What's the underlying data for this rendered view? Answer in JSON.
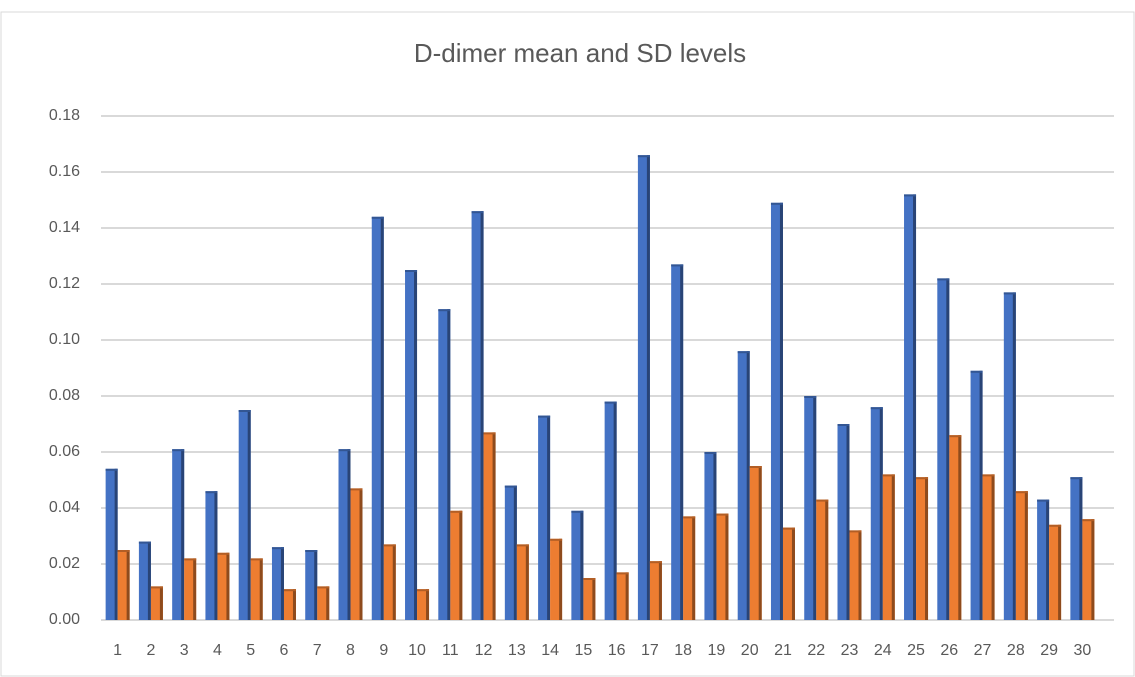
{
  "chart_data": {
    "type": "bar",
    "title": "D-dimer mean and SD levels",
    "categories": [
      "1",
      "2",
      "3",
      "4",
      "5",
      "6",
      "7",
      "8",
      "9",
      "10",
      "11",
      "12",
      "13",
      "14",
      "15",
      "16",
      "17",
      "18",
      "19",
      "20",
      "21",
      "22",
      "23",
      "24",
      "25",
      "26",
      "27",
      "28",
      "29",
      "30"
    ],
    "series": [
      {
        "color": "#4472c4",
        "values": [
          0.054,
          0.028,
          0.061,
          0.046,
          0.075,
          0.026,
          0.025,
          0.061,
          0.144,
          0.125,
          0.111,
          0.146,
          0.048,
          0.073,
          0.039,
          0.078,
          0.166,
          0.127,
          0.06,
          0.096,
          0.149,
          0.08,
          0.07,
          0.076,
          0.152,
          0.122,
          0.089,
          0.117,
          0.043,
          0.051
        ]
      },
      {
        "color": "#ed7d31",
        "values": [
          0.025,
          0.012,
          0.022,
          0.024,
          0.022,
          0.011,
          0.012,
          0.047,
          0.027,
          0.011,
          0.039,
          0.067,
          0.027,
          0.029,
          0.015,
          0.017,
          0.021,
          0.037,
          0.038,
          0.055,
          0.033,
          0.043,
          0.032,
          0.052,
          0.051,
          0.066,
          0.052,
          0.046,
          0.034,
          0.036
        ]
      }
    ],
    "ylim": [
      0,
      0.18
    ],
    "yticks": [
      {
        "value": 0,
        "label": "0.00"
      },
      0.02,
      0.04,
      0.06,
      0.08,
      {
        "value": 0.1,
        "label": "0.10"
      },
      0.12,
      0.14,
      0.16,
      0.18
    ],
    "grid": true
  }
}
